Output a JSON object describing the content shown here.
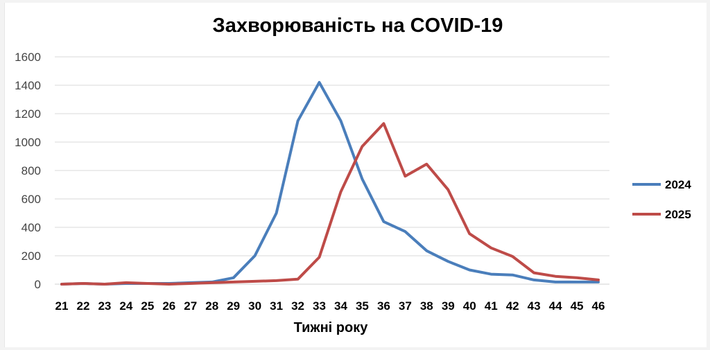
{
  "chart_data": {
    "type": "line",
    "title": "Захворюваність на COVID-19",
    "xlabel": "Тижні року",
    "ylabel": "",
    "x": [
      "21",
      "22",
      "23",
      "24",
      "25",
      "26",
      "27",
      "28",
      "29",
      "30",
      "31",
      "32",
      "33",
      "34",
      "35",
      "36",
      "37",
      "38",
      "39",
      "40",
      "41",
      "42",
      "43",
      "44",
      "45",
      "46"
    ],
    "ylim": [
      0,
      1600
    ],
    "yticks": [
      "0",
      "200",
      "400",
      "600",
      "800",
      "1000",
      "1200",
      "1400",
      "1600"
    ],
    "grid": true,
    "legend_position": "right",
    "series": [
      {
        "name": "2024",
        "color": "#4a7ebb",
        "values": [
          0,
          5,
          0,
          5,
          5,
          5,
          10,
          15,
          45,
          200,
          500,
          1150,
          1420,
          1150,
          740,
          440,
          370,
          235,
          160,
          100,
          70,
          65,
          30,
          15,
          15,
          15
        ]
      },
      {
        "name": "2025",
        "color": "#be4b48",
        "values": [
          0,
          5,
          0,
          10,
          5,
          0,
          5,
          10,
          15,
          20,
          25,
          35,
          190,
          650,
          970,
          1130,
          760,
          845,
          665,
          355,
          255,
          195,
          80,
          55,
          45,
          30
        ]
      }
    ]
  }
}
